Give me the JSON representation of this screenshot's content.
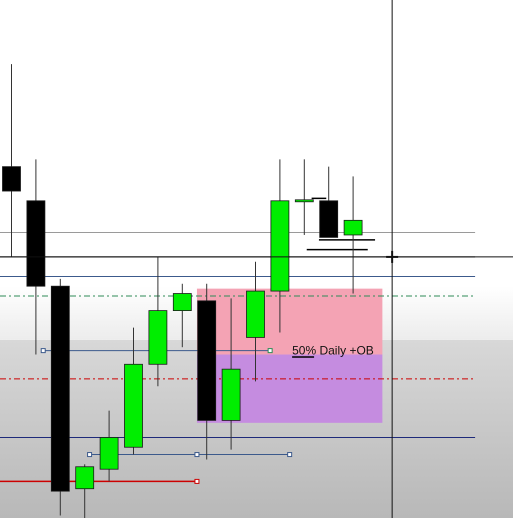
{
  "chart_data": {
    "type": "candlestick",
    "title": "",
    "xlabel": "",
    "ylabel": "",
    "ylim": [
      0,
      100
    ],
    "grid": false,
    "legend": "none",
    "colors": {
      "bull": "#00ee00",
      "bear": "#000000",
      "zone_upper": "#f4a3b4",
      "zone_lower": "#c58ce0",
      "premium_band": "#ffffff",
      "discount_band": "#c9c9c9",
      "ref_blue": "#3c5a8c",
      "ref_navy": "#1e2a7a",
      "ref_red": "#cc0000",
      "ref_green_dash": "#2e8b57",
      "ref_red_dashdot": "#cc0000",
      "ref_gray": "#9a9a9a",
      "ref_black": "#000000"
    },
    "candles": [
      {
        "i": 0,
        "open": 72.0,
        "high": 93.0,
        "low": 53.5,
        "close": 67.0
      },
      {
        "i": 1,
        "open": 65.0,
        "high": 73.5,
        "low": 33.5,
        "close": 47.5
      },
      {
        "i": 2,
        "open": 47.5,
        "high": 49.0,
        "low": 0.5,
        "close": 5.5
      },
      {
        "i": 3,
        "open": 6.0,
        "high": 11.0,
        "low": 0.0,
        "close": 10.5
      },
      {
        "i": 4,
        "open": 10.0,
        "high": 22.0,
        "low": 7.5,
        "close": 16.5
      },
      {
        "i": 5,
        "open": 14.5,
        "high": 39.0,
        "low": 13.0,
        "close": 31.5
      },
      {
        "i": 6,
        "open": 31.5,
        "high": 53.5,
        "low": 27.0,
        "close": 42.5
      },
      {
        "i": 7,
        "open": 42.5,
        "high": 48.0,
        "low": 35.0,
        "close": 46.0
      },
      {
        "i": 8,
        "open": 44.5,
        "high": 48.0,
        "low": 12.0,
        "close": 20.0
      },
      {
        "i": 9,
        "open": 20.0,
        "high": 45.0,
        "low": 14.0,
        "close": 30.5
      },
      {
        "i": 10,
        "open": 37.0,
        "high": 52.5,
        "low": 28.0,
        "close": 46.5
      },
      {
        "i": 11,
        "open": 46.5,
        "high": 73.5,
        "low": 38.0,
        "close": 65.0
      },
      {
        "i": 12,
        "open": 65.0,
        "high": 73.5,
        "low": 58.0,
        "close": 65.0
      },
      {
        "i": 13,
        "open": 65.0,
        "high": 72.0,
        "low": 58.0,
        "close": 57.5
      },
      {
        "i": 14,
        "open": 58.0,
        "high": 70.0,
        "low": 46.0,
        "close": 61.0
      }
    ],
    "zones": [
      {
        "name": "upper_ob",
        "y_top": 47.0,
        "y_bottom": 33.5,
        "x_from": 7.6,
        "x_to": 15.2
      },
      {
        "name": "lower_ob",
        "y_top": 33.5,
        "y_bottom": 19.5,
        "x_from": 7.6,
        "x_to": 15.2
      },
      {
        "name": "discount_band",
        "y_top": 36.5,
        "y_bottom": -2.0
      },
      {
        "name": "premium_band",
        "y_top": 47.5,
        "y_bottom": 36.5
      }
    ],
    "annotations": [
      {
        "text": "50% Daily +OB",
        "x": 11.5,
        "y": 34.3
      }
    ],
    "lines": [
      {
        "name": "gray-level-line",
        "y": 58.5,
        "x_from": -1,
        "x_to": 19,
        "style": "solid",
        "color": "ref_gray"
      },
      {
        "name": "black-level-line",
        "y": 53.5,
        "x_from": -1,
        "x_to": 19,
        "style": "solid",
        "color": "ref_black"
      },
      {
        "name": "blue-level-line",
        "y": 49.5,
        "x_from": -1,
        "x_to": 19,
        "style": "solid",
        "color": "ref_blue"
      },
      {
        "name": "green-dash-dot-line",
        "y": 45.5,
        "x_from": -1,
        "x_to": 19,
        "style": "dashdot",
        "color": "ref_green_dash"
      },
      {
        "name": "red-dash-dot-line",
        "y": 28.5,
        "x_from": -1,
        "x_to": 19,
        "style": "dashdot",
        "color": "ref_red_dashdot"
      },
      {
        "name": "navy-level-line",
        "y": 16.5,
        "x_from": -1,
        "x_to": 19,
        "style": "solid",
        "color": "ref_navy"
      },
      {
        "name": "blue-ray-line",
        "y": 34.3,
        "x_from": 1.3,
        "x_to": 10.6,
        "style": "solid",
        "color": "ref_blue"
      },
      {
        "name": "red-ray-line",
        "y": 7.5,
        "x_from": -1,
        "x_to": 7.6,
        "style": "solid",
        "color": "ref_red"
      },
      {
        "name": "blue-ray-line-lower",
        "y": 13.0,
        "x_from": 3.2,
        "x_to": 11.4,
        "style": "solid",
        "color": "ref_blue"
      },
      {
        "name": "annotation-underline",
        "y": 33.0,
        "x_from": 11.5,
        "x_to": 12.4,
        "style": "solid",
        "color": "ref_black"
      },
      {
        "name": "black-ray-line-a",
        "y": 65.5,
        "x_from": 12.3,
        "x_to": 12.9,
        "style": "solid",
        "color": "ref_black"
      },
      {
        "name": "black-ray-line-b",
        "y": 55.0,
        "x_from": 12.1,
        "x_to": 14.6,
        "style": "solid",
        "color": "ref_black"
      },
      {
        "name": "black-ray-line-c",
        "y": 57.0,
        "x_from": 12.6,
        "x_to": 14.9,
        "style": "solid",
        "color": "ref_black"
      }
    ],
    "markers": [
      {
        "x": 1.3,
        "y": 34.3,
        "color": "ref_blue"
      },
      {
        "x": 10.6,
        "y": 34.3,
        "color": "ref_green_dash"
      },
      {
        "x": 3.2,
        "y": 13.0,
        "color": "ref_blue"
      },
      {
        "x": 7.6,
        "y": 13.0,
        "color": "ref_blue"
      },
      {
        "x": 11.4,
        "y": 13.0,
        "color": "ref_blue"
      },
      {
        "x": 7.6,
        "y": 7.5,
        "color": "ref_red"
      }
    ],
    "crosshair": {
      "x": 15.6,
      "y": 53.5
    }
  }
}
